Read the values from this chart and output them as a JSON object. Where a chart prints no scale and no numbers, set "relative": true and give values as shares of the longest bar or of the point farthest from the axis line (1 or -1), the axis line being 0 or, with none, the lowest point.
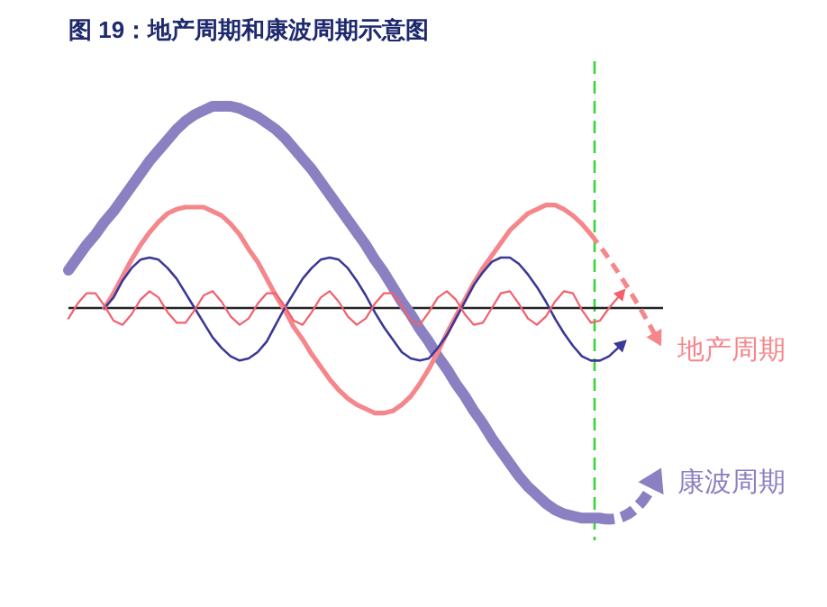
{
  "chart_data": {
    "type": "line",
    "title": "图 19：地产周期和康波周期示意图",
    "relative": true,
    "legend": "right",
    "categories": [
      null,
      null,
      null,
      null,
      null,
      null,
      null,
      null,
      null,
      null,
      null,
      null,
      null,
      null,
      null,
      null,
      null,
      null,
      null,
      null,
      null,
      null,
      null,
      null,
      null,
      null,
      null,
      null,
      null,
      null,
      null,
      null,
      null,
      null,
      null,
      null,
      null,
      null,
      null,
      null,
      null,
      null,
      null,
      null,
      null,
      null,
      null,
      null,
      null,
      null,
      null,
      null,
      null,
      null,
      null,
      null,
      null,
      null,
      null,
      null,
      null,
      null,
      null,
      null,
      null,
      null,
      null
    ],
    "series": [
      {
        "name": "康波周期",
        "color": "#8a80c2",
        "line_style": "solid",
        "values": [
          0.18,
          0.24,
          0.3,
          0.35,
          0.41,
          0.46,
          0.52,
          0.58,
          0.64,
          0.7,
          0.75,
          0.8,
          0.85,
          0.89,
          0.92,
          0.94,
          0.96,
          0.96,
          0.96,
          0.95,
          0.93,
          0.91,
          0.88,
          0.85,
          0.81,
          0.76,
          0.71,
          0.66,
          0.6,
          0.54,
          0.48,
          0.42,
          0.36,
          0.3,
          0.23,
          0.17,
          0.1,
          0.03,
          -0.03,
          -0.1,
          -0.16,
          -0.23,
          -0.29,
          -0.36,
          -0.42,
          -0.49,
          -0.55,
          -0.62,
          -0.68,
          -0.74,
          -0.8,
          -0.85,
          -0.89,
          -0.93,
          -0.96,
          -0.98,
          -0.99,
          -1.0,
          -1.0,
          -1.0,
          null,
          null,
          null,
          null,
          null,
          null,
          null
        ]
      },
      {
        "name": "地产周期",
        "color": "#f5868b",
        "line_style": "solid",
        "values": [
          null,
          null,
          null,
          null,
          0.0,
          0.07,
          0.15,
          0.23,
          0.3,
          0.36,
          0.41,
          0.45,
          0.47,
          0.48,
          0.48,
          0.48,
          0.46,
          0.44,
          0.4,
          0.35,
          0.28,
          0.22,
          0.14,
          0.06,
          -0.01,
          -0.09,
          -0.15,
          -0.22,
          -0.28,
          -0.34,
          -0.39,
          -0.43,
          -0.46,
          -0.48,
          -0.5,
          -0.5,
          -0.49,
          -0.46,
          -0.42,
          -0.36,
          -0.29,
          -0.21,
          -0.12,
          -0.04,
          0.04,
          0.12,
          0.19,
          0.25,
          0.31,
          0.37,
          0.41,
          0.45,
          0.47,
          0.49,
          0.49,
          0.47,
          0.44,
          0.4,
          0.35,
          null,
          null,
          null,
          null,
          null,
          null,
          null,
          null
        ]
      },
      {
        "color": "#3b3897",
        "line_style": "solid",
        "values": [
          null,
          null,
          null,
          null,
          0.0,
          0.05,
          0.13,
          0.19,
          0.23,
          0.24,
          0.23,
          0.19,
          0.14,
          0.07,
          0.0,
          -0.07,
          -0.14,
          -0.19,
          -0.23,
          -0.25,
          -0.24,
          -0.21,
          -0.16,
          -0.08,
          0.0,
          0.07,
          0.14,
          0.19,
          0.23,
          0.24,
          0.23,
          0.19,
          0.13,
          0.06,
          -0.02,
          -0.09,
          -0.15,
          -0.21,
          -0.24,
          -0.25,
          -0.24,
          -0.19,
          -0.13,
          -0.05,
          0.03,
          0.11,
          0.17,
          0.22,
          0.24,
          0.24,
          0.21,
          0.16,
          0.1,
          0.03,
          -0.05,
          -0.12,
          -0.18,
          -0.23,
          -0.25,
          -0.25,
          -0.23,
          -0.19,
          null,
          null,
          null,
          null,
          null
        ]
      },
      {
        "color": "#f2606e",
        "line_style": "solid",
        "values": [
          -0.05,
          0.02,
          0.07,
          0.07,
          0.01,
          -0.06,
          -0.08,
          -0.03,
          0.04,
          0.08,
          0.05,
          -0.02,
          -0.07,
          -0.07,
          -0.01,
          0.06,
          0.08,
          0.03,
          -0.04,
          -0.08,
          -0.05,
          0.02,
          0.07,
          0.07,
          0.01,
          -0.06,
          -0.08,
          -0.02,
          0.05,
          0.08,
          0.03,
          -0.04,
          -0.08,
          -0.05,
          0.02,
          0.07,
          0.07,
          0.01,
          -0.06,
          -0.08,
          -0.02,
          0.05,
          0.08,
          0.04,
          -0.03,
          -0.08,
          -0.07,
          0.0,
          0.07,
          0.08,
          0.02,
          -0.05,
          -0.08,
          -0.04,
          0.03,
          0.08,
          0.07,
          -0.01,
          -0.07,
          -0.06,
          0.0,
          0.05,
          null,
          null,
          null,
          null,
          null
        ]
      }
    ]
  }
}
